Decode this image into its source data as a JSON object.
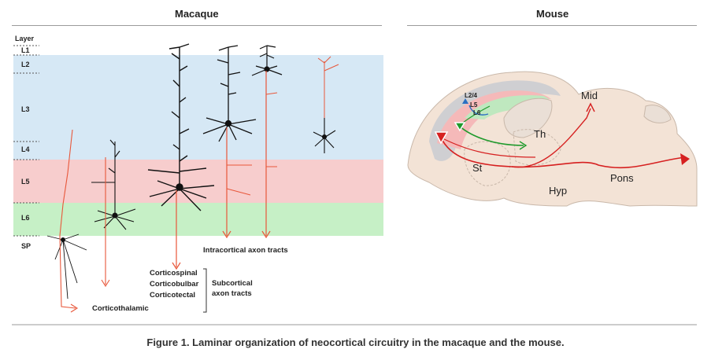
{
  "panels": {
    "macaque": {
      "title": "Macaque"
    },
    "mouse": {
      "title": "Mouse"
    }
  },
  "layers": {
    "header": "Layer",
    "items": [
      "L1",
      "L2",
      "L3",
      "L4",
      "L5",
      "L6",
      "SP"
    ]
  },
  "tracts": {
    "intracortical": "Intracortical axon tracts",
    "subcortical_targets": [
      "Corticospinal",
      "Corticobulbar",
      "Corticotectal"
    ],
    "subcortical_label_line1": "Subcortical",
    "subcortical_label_line2": "axon tracts",
    "corticothalamic": "Corticothalamic"
  },
  "mouse_regions": {
    "cortex_layers": [
      "L2/4",
      "L5",
      "L6"
    ],
    "mid": "Mid",
    "th": "Th",
    "st": "St",
    "hyp": "Hyp",
    "pons": "Pons"
  },
  "caption": "Figure 1. Laminar organization of neocortical circuitry in the macaque and the mouse.",
  "colors": {
    "l23_band": "#d6e8f5",
    "l5_band": "#f7cdcd",
    "l6_band": "#c6f0c6",
    "axon_red": "#e8573a",
    "neuron_black": "#111111",
    "mouse_tissue": "#f3e3d6",
    "mouse_green": "#1f9a2c",
    "mouse_red": "#d62020",
    "mouse_blue": "#2b6fc2"
  }
}
